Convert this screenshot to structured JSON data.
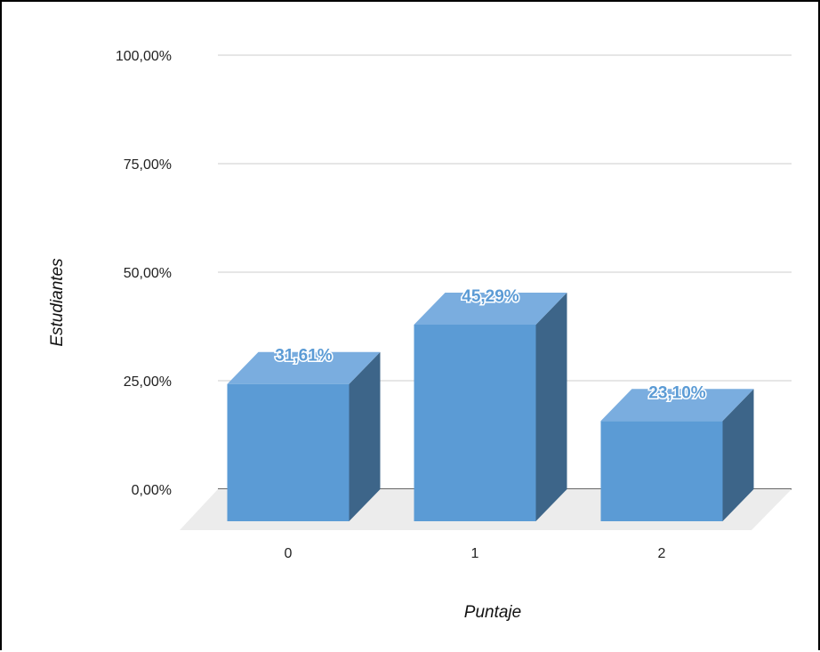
{
  "chart_data": {
    "type": "bar",
    "three_d": true,
    "categories": [
      "0",
      "1",
      "2"
    ],
    "values": [
      31.61,
      45.29,
      23.1
    ],
    "value_labels": [
      "31,61%",
      "45,29%",
      "23,10%"
    ],
    "y_ticks": [
      0,
      25,
      50,
      75,
      100
    ],
    "y_tick_labels": [
      "0,00%",
      "25,00%",
      "50,00%",
      "75,00%",
      "100,00%"
    ],
    "ylim": [
      0,
      100
    ],
    "xlabel": "Puntaje",
    "ylabel": "Estudiantes",
    "grid": true,
    "legend": "none",
    "colors": {
      "bar_front": "#5b9bd5",
      "bar_top": "#7aaddf",
      "bar_side": "#3d6589",
      "floor": "#ececec",
      "grid": "#cccccc",
      "baseline": "#333333",
      "data_label": "#5b9bd5"
    }
  }
}
